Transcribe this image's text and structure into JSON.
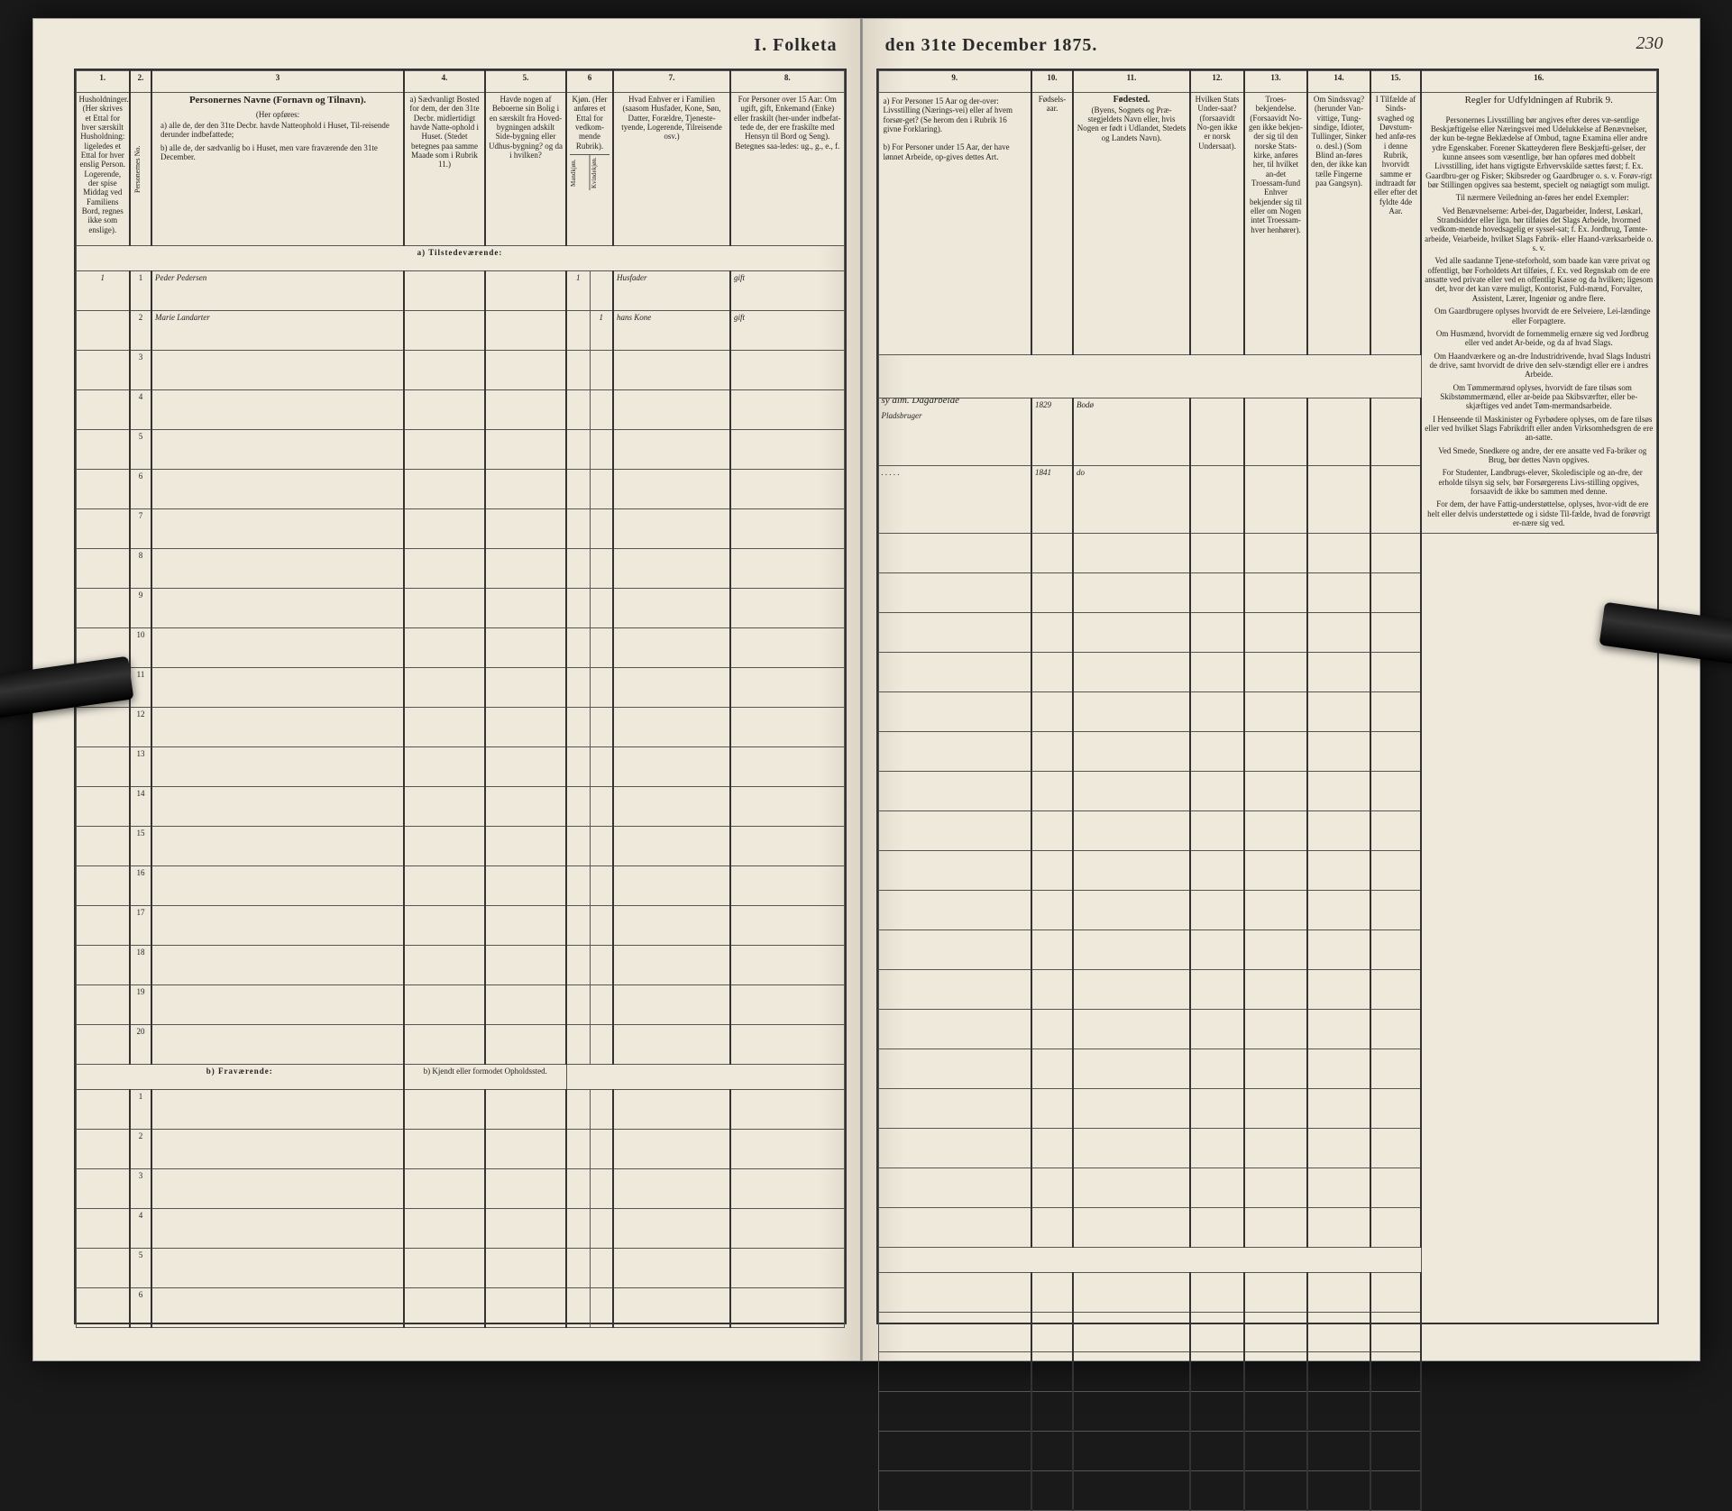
{
  "title_left": "I.  Folketa",
  "title_right": "den 31te December 1875.",
  "page_number": "230",
  "columns_left": {
    "c1": "1.",
    "c2": "2.",
    "c3": "3",
    "c4": "4.",
    "c5": "5.",
    "c6": "6",
    "c7": "7.",
    "c8": "8."
  },
  "columns_right": {
    "c9": "9.",
    "c10": "10.",
    "c11": "11.",
    "c12": "12.",
    "c13": "13.",
    "c14": "14.",
    "c15": "15.",
    "c16": "16."
  },
  "headers_left": {
    "h1": "Husholdninger. (Her skrives et Ettal for hver særskilt Husholdning: ligeledes et Ettal for hver enslig Person. Logerende, der spise Middag ved Familiens Bord, regnes ikke som enslige).",
    "h2": "Personernes No.",
    "h3_title": "Personernes Navne (Fornavn og Tilnavn).",
    "h3_sub": "(Her opføres:",
    "h3_a": "a) alle de, der den 31te Decbr. havde Natteophold i Huset, Til-reisende derunder indbefattede;",
    "h3_b": "b) alle de, der sædvanlig bo i Huset, men vare fraværende den 31te December.",
    "h4": "a) Sædvanligt Bosted for dem, der den 31te Decbr. midlertidigt havde Natte-ophold i Huset. (Stedet betegnes paa samme Maade som i Rubrik 11.)",
    "h5": "Havde nogen af Beboerne sin Bolig i en særskilt fra Hoved-bygningen adskilt Side-bygning eller Udhus-bygning? og da i hvilken?",
    "h6": "Kjøn. (Her anføres et Ettal for vedkom-mende Rubrik).",
    "h6a": "Mandkjøn.",
    "h6b": "Kvindekjøn.",
    "h7": "Hvad Enhver er i Familien (saasom Husfader, Kone, Søn, Datter, Forældre, Tjeneste-tyende, Logerende, Tilreisende osv.)",
    "h8": "For Personer over 15 Aar: Om ugift, gift, Enkemand (Enke) eller fraskilt (her-under indbefat-tede de, der ere fraskilte med Hensyn til Bord og Seng). Betegnes saa-ledes: ug., g., e., f."
  },
  "headers_right": {
    "h9_a": "a) For Personer 15 Aar og der-over: Livsstilling (Nærings-vei) eller af hvem forsør-get? (Se herom den i Rubrik 16 givne Forklaring).",
    "h9_b": "b) For Personer under 15 Aar, der have lønnet Arbeide, op-gives dettes Art.",
    "h10": "Fødsels-aar.",
    "h11_title": "Fødested.",
    "h11_sub": "(Byens, Sognets og Præ-stegjeldets Navn eller, hvis Nogen er født i Udlandet, Stedets og Landets Navn).",
    "h12": "Hvilken Stats Under-saat? (forsaavidt No-gen ikke er norsk Undersaat).",
    "h13": "Troes-bekjendelse. (Forsaavidt No-gen ikke bekjen-der sig til den norske Stats-kirke, anføres her, til hvilket an-det Troessam-fund Enhver bekjender sig til eller om Nogen intet Troessam-hver henhører).",
    "h14": "Om Sindssvag? (herunder Van-vittige, Tung-sindige, Idioter, Tullinger, Sinker o. desl.) (Som Blind an-føres den, der ikke kan tælle Fingerne paa Gangsyn).",
    "h15": "I Tilfælde af Sinds-svaghed og Døvstum-hed anfø-res i denne Rubrik, hvorvidt samme er indtraadt før eller efter det fyldte 4de Aar.",
    "h16_title": "Regler for Udfyldningen af Rubrik 9."
  },
  "section_a": "a)  Tilstedeværende:",
  "section_b": "b)  Fraværende:",
  "section_b_note": "b) Kjendt eller formodet Opholdssted.",
  "rows": [
    {
      "hh": "1",
      "no": "1",
      "name": "Peder Pedersen",
      "m": "1",
      "k": "",
      "rel": "Husfader",
      "civ": "gift",
      "occ_note": "sy alm. Dagarbeide",
      "occ": "Pladsbruger",
      "yr": "1829",
      "place": "Bodø"
    },
    {
      "hh": "",
      "no": "2",
      "name": "Marie Landarter",
      "m": "",
      "k": "1",
      "rel": "hans Kone",
      "civ": "gift",
      "occ_note": "",
      "occ": ". . . . .",
      "yr": "1841",
      "place": "do"
    }
  ],
  "empty_rows_a": [
    "3",
    "4",
    "5",
    "6",
    "7",
    "8",
    "9",
    "10",
    "11",
    "12",
    "13",
    "14",
    "15",
    "16",
    "17",
    "18",
    "19",
    "20"
  ],
  "empty_rows_b": [
    "1",
    "2",
    "3",
    "4",
    "5",
    "6"
  ],
  "rules_text": [
    "Personernes Livsstilling bør angives efter deres væ-sentlige Beskjæftigelse eller Næringsvei med Udelukkelse af Benævnelser, der kun be-tegne Beklædelse af Ombud, tagne Examina eller andre ydre Egenskaber. Forener Skatteyderen flere Beskjæfti-gelser, der kunne ansees som væsentlige, bør han opføres med dobbelt Livsstilling, idet hans vigtigste Erhvervskilde sættes først; f. Ex. Gaardbru-ger og Fisker; Skibsreder og Gaardbruger o. s. v. Forøv-rigt bør Stillingen opgives saa bestemt, specielt og nøiagtigt som muligt.",
    "Til nærmere Veiledning an-føres her endel Exempler:",
    "Ved Benævnelserne: Arbei-der, Dagarbeider, Inderst, Løskarl, Strandsidder eller lign. bør tilføies det Slags Arbeide, hvormed vedkom-mende hovedsagelig er syssel-sat; f. Ex. Jordbrug, Tømte-arbeide, Veiarbeide, hvilket Slags Fabrik- eller Haand-værksarbeide o. s. v.",
    "Ved alle saadanne Tjene-steforhold, som baade kan være privat og offentligt, bør Forholdets Art tilføies, f. Ex. ved Regnskab om de ere ansatte ved private eller ved en offentlig Kasse og da hvilken; ligesom det, hvor det kan være muligt, Kontorist, Fuld-mænd, Forvalter, Assistent, Lærer, Ingeniør og andre flere.",
    "Om Gaardbrugere oplyses hvorvidt de ere Selveiere, Lei-lændinge eller Forpagtere.",
    "Om Husmænd, hvorvidt de fornemmelig ernære sig ved Jordbrug eller ved andet Ar-beide, og da af hvad Slags.",
    "Om Haandværkere og an-dre Industridrivende, hvad Slags Industri de drive, samt hvorvidt de drive den selv-stændigt eller ere i andres Arbeide.",
    "Om Tømmermænd oplyses, hvorvidt de fare tilsøs som Skibstømmermænd, eller ar-beide paa Skibsværfter, eller be-skjæftiges ved andet Tøm-mermandsarbeide.",
    "I Henseende til Maskinister og Fyrbødere oplyses, om de fare tilsøs eller ved hvilket Slags Fabrikdrift eller anden Virksomhedsgren de ere an-satte.",
    "Ved Smede, Snedkere og andre, der ere ansatte ved Fa-briker og Brug, bør dettes Navn opgives.",
    "For Studenter, Landbrugs-elever, Skoledisciple og an-dre, der erholde tilsyn sig selv, bør Forsørgerens Livs-stilling opgives, forsaavidt de ikke bo sammen med denne.",
    "For dem, der have Fattig-understøttelse, oplyses, hvor-vidt de ere helt eller delvis understøttede og i sidste Til-fælde, hvad de forøvrigt er-nære sig ved."
  ],
  "colors": {
    "paper": "#efe9dc",
    "ink": "#2a2a2a",
    "line": "#555555",
    "dark_bg": "#1a1a1a"
  }
}
